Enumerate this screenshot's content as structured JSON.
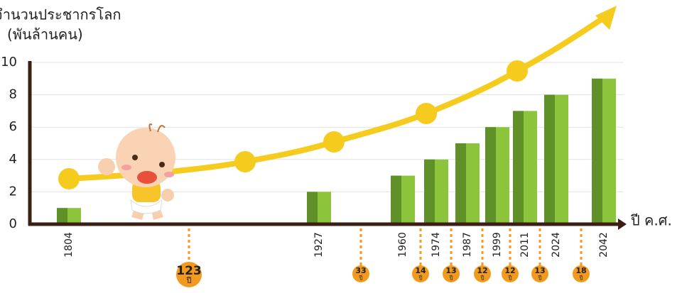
{
  "chart_data": {
    "type": "bar",
    "title": "จำนวนประชากรโลก",
    "subtitle": "(พันล้านคน)",
    "x_label": "ปี ค.ศ.",
    "categories": [
      "1804",
      "1927",
      "1960",
      "1974",
      "1987",
      "1999",
      "2011",
      "2024",
      "2042"
    ],
    "values": [
      1,
      2,
      3,
      4,
      5,
      6,
      7,
      8,
      9
    ],
    "color": "#8cc43c",
    "ylim": [
      0,
      10
    ],
    "yticks": [
      0,
      2,
      4,
      6,
      8,
      10
    ],
    "grid": true,
    "intervals": [
      123,
      33,
      14,
      13,
      12,
      12,
      13,
      18
    ],
    "interval_unit": "ปี"
  }
}
